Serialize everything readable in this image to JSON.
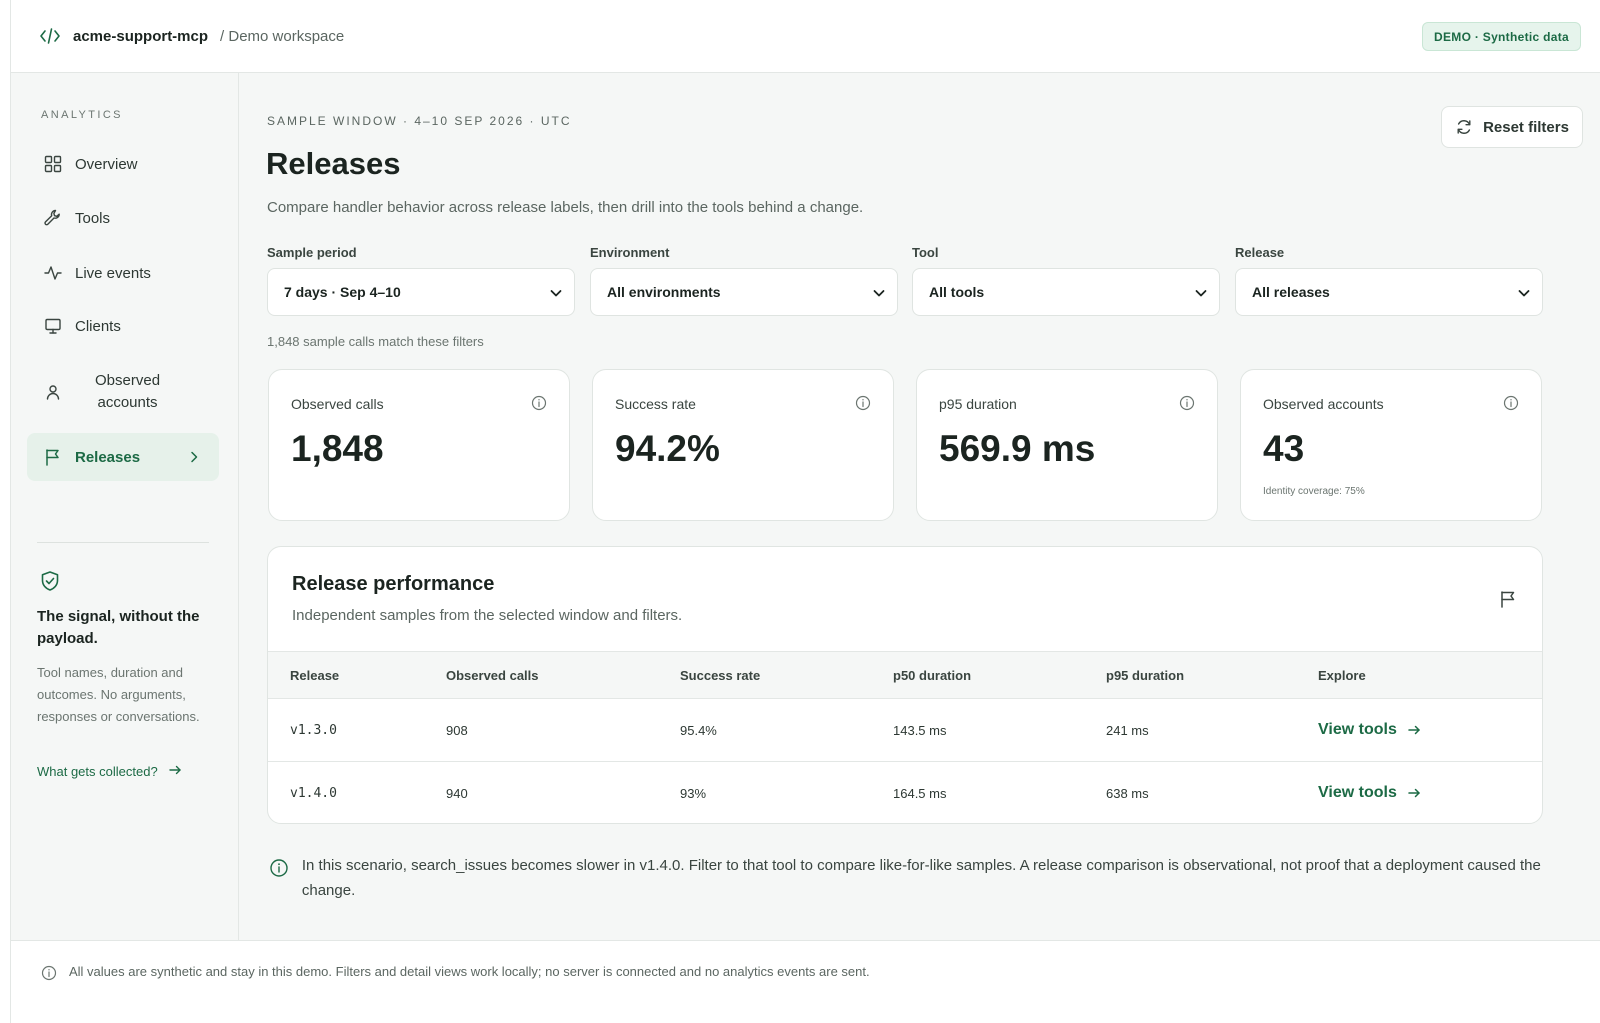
{
  "header": {
    "brand": "acme-support-mcp",
    "workspace": "/ Demo workspace",
    "demo_badge": "DEMO · Synthetic data"
  },
  "sidebar": {
    "section_label": "ANALYTICS",
    "items": [
      {
        "label": "Overview",
        "icon": "grid-icon"
      },
      {
        "label": "Tools",
        "icon": "wrench-icon"
      },
      {
        "label": "Live events",
        "icon": "activity-icon"
      },
      {
        "label": "Clients",
        "icon": "monitor-icon"
      },
      {
        "label_line1": "Observed",
        "label_line2": "accounts",
        "icon": "user-icon"
      },
      {
        "label": "Releases",
        "icon": "flag-icon",
        "active": true
      }
    ],
    "info": {
      "heading": "The signal, without the payload.",
      "text": "Tool names, duration and outcomes. No arguments, responses or conversations.",
      "link": "What gets collected?"
    }
  },
  "main": {
    "eyebrow": "SAMPLE WINDOW · 4–10 SEP 2026 · UTC",
    "title": "Releases",
    "subtitle": "Compare handler behavior across release labels, then drill into the tools behind a change.",
    "reset_label": "Reset filters",
    "filters": [
      {
        "label": "Sample period",
        "value": "7 days · Sep 4–10"
      },
      {
        "label": "Environment",
        "value": "All environments"
      },
      {
        "label": "Tool",
        "value": "All tools"
      },
      {
        "label": "Release",
        "value": "All releases"
      }
    ],
    "match_note": "1,848 sample calls match these filters",
    "stats": [
      {
        "label": "Observed calls",
        "value": "1,848"
      },
      {
        "label": "Success rate",
        "value": "94.2%"
      },
      {
        "label": "p95 duration",
        "value": "569.9 ms"
      },
      {
        "label": "Observed accounts",
        "value": "43",
        "sub": "Identity coverage: 75%"
      }
    ],
    "performance": {
      "title": "Release performance",
      "subtitle": "Independent samples from the selected window and filters.",
      "columns": [
        "Release",
        "Observed calls",
        "Success rate",
        "p50 duration",
        "p95 duration",
        "Explore"
      ],
      "rows": [
        {
          "release": "v1.3.0",
          "calls": "908",
          "success": "95.4%",
          "p50": "143.5 ms",
          "p95": "241 ms",
          "explore": "View tools"
        },
        {
          "release": "v1.4.0",
          "calls": "940",
          "success": "93%",
          "p50": "164.5 ms",
          "p95": "638 ms",
          "explore": "View tools"
        }
      ]
    },
    "scenario_note": "In this scenario, search_issues becomes slower in v1.4.0. Filter to that tool to compare like-for-like samples. A release comparison is observational, not proof that a deployment caused the change."
  },
  "footer": {
    "text": "All values are synthetic and stay in this demo. Filters and detail views work locally; no server is connected and no analytics events are sent."
  },
  "colors": {
    "accent": "#1c6a45",
    "accent_bg": "#e6f1ea",
    "background": "#f5f7f6"
  }
}
